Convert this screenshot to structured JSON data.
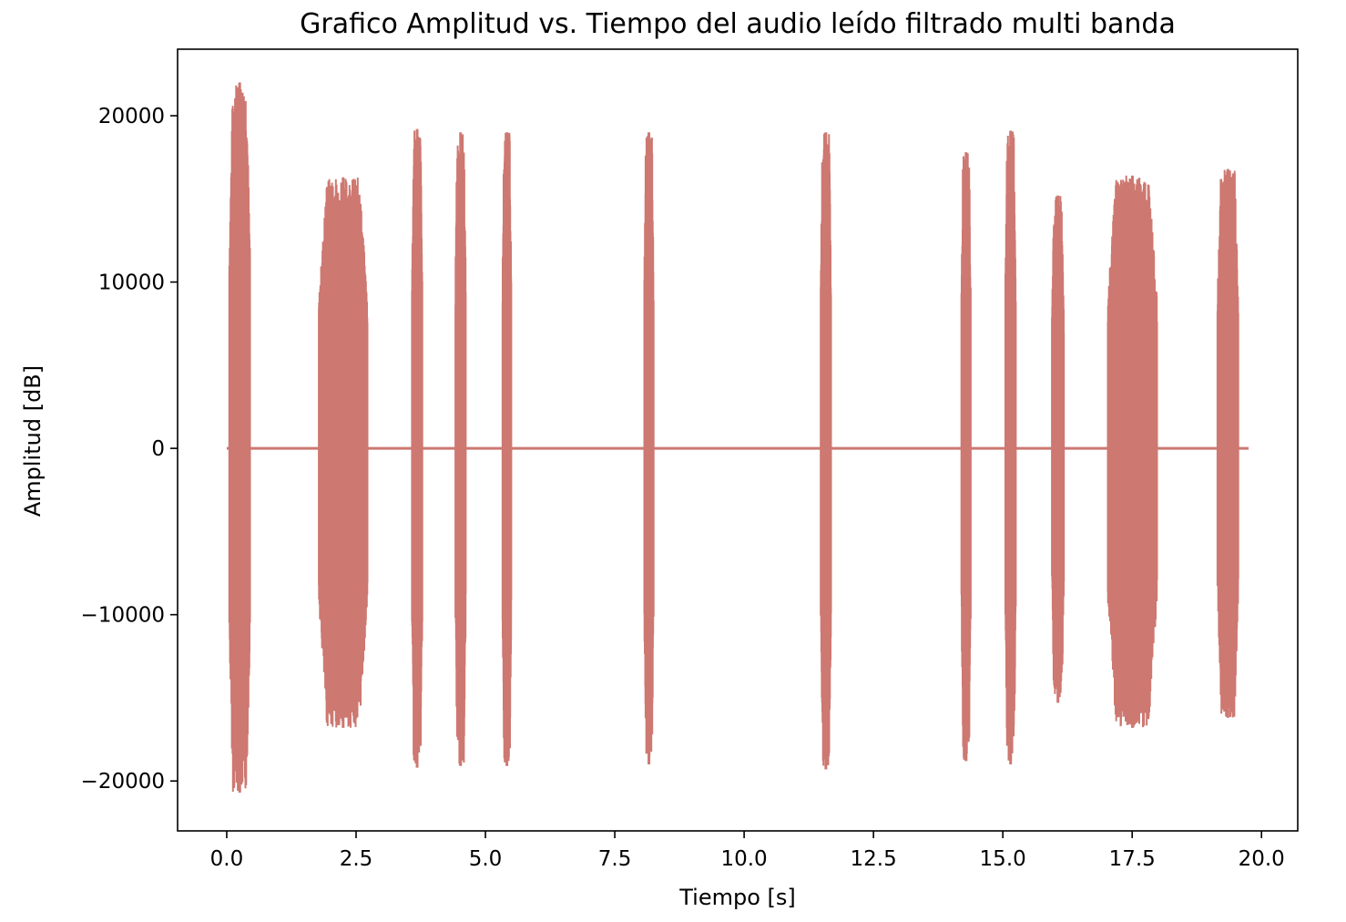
{
  "chart_data": {
    "type": "line",
    "title": "Grafico Amplitud vs. Tiempo del audio leído filtrado multi banda",
    "xlabel": "Tiempo [s]",
    "ylabel": "Amplitud [dB]",
    "xlim": [
      -0.95,
      20.7
    ],
    "ylim": [
      -23000,
      24000
    ],
    "xticks": [
      0.0,
      2.5,
      5.0,
      7.5,
      10.0,
      12.5,
      15.0,
      17.5,
      20.0
    ],
    "xtick_labels": [
      "0.0",
      "2.5",
      "5.0",
      "7.5",
      "10.0",
      "12.5",
      "15.0",
      "17.5",
      "20.0"
    ],
    "yticks": [
      20000,
      10000,
      0,
      -10000,
      -20000
    ],
    "ytick_labels": [
      "20000",
      "10000",
      "0",
      "−10000",
      "−20000"
    ],
    "grid": false,
    "color": "#cd7871",
    "series": [
      {
        "x_range": [
          0.0,
          19.75
        ],
        "baseline": 0,
        "bursts": [
          {
            "start": 0.05,
            "end": 0.45,
            "max": 22000,
            "min": -20700
          },
          {
            "start": 1.78,
            "end": 2.72,
            "max": 16300,
            "min": -16800
          },
          {
            "start": 3.58,
            "end": 3.78,
            "max": 19200,
            "min": -19200
          },
          {
            "start": 4.42,
            "end": 4.62,
            "max": 19000,
            "min": -19100
          },
          {
            "start": 5.33,
            "end": 5.5,
            "max": 19000,
            "min": -19100
          },
          {
            "start": 8.07,
            "end": 8.25,
            "max": 19000,
            "min": -19000
          },
          {
            "start": 11.48,
            "end": 11.68,
            "max": 19000,
            "min": -19300
          },
          {
            "start": 14.2,
            "end": 14.38,
            "max": 17800,
            "min": -18800
          },
          {
            "start": 15.05,
            "end": 15.25,
            "max": 19100,
            "min": -19000
          },
          {
            "start": 15.95,
            "end": 16.18,
            "max": 15200,
            "min": -15300
          },
          {
            "start": 17.03,
            "end": 17.98,
            "max": 16400,
            "min": -16800
          },
          {
            "start": 19.15,
            "end": 19.55,
            "max": 16800,
            "min": -16200
          }
        ]
      }
    ]
  }
}
